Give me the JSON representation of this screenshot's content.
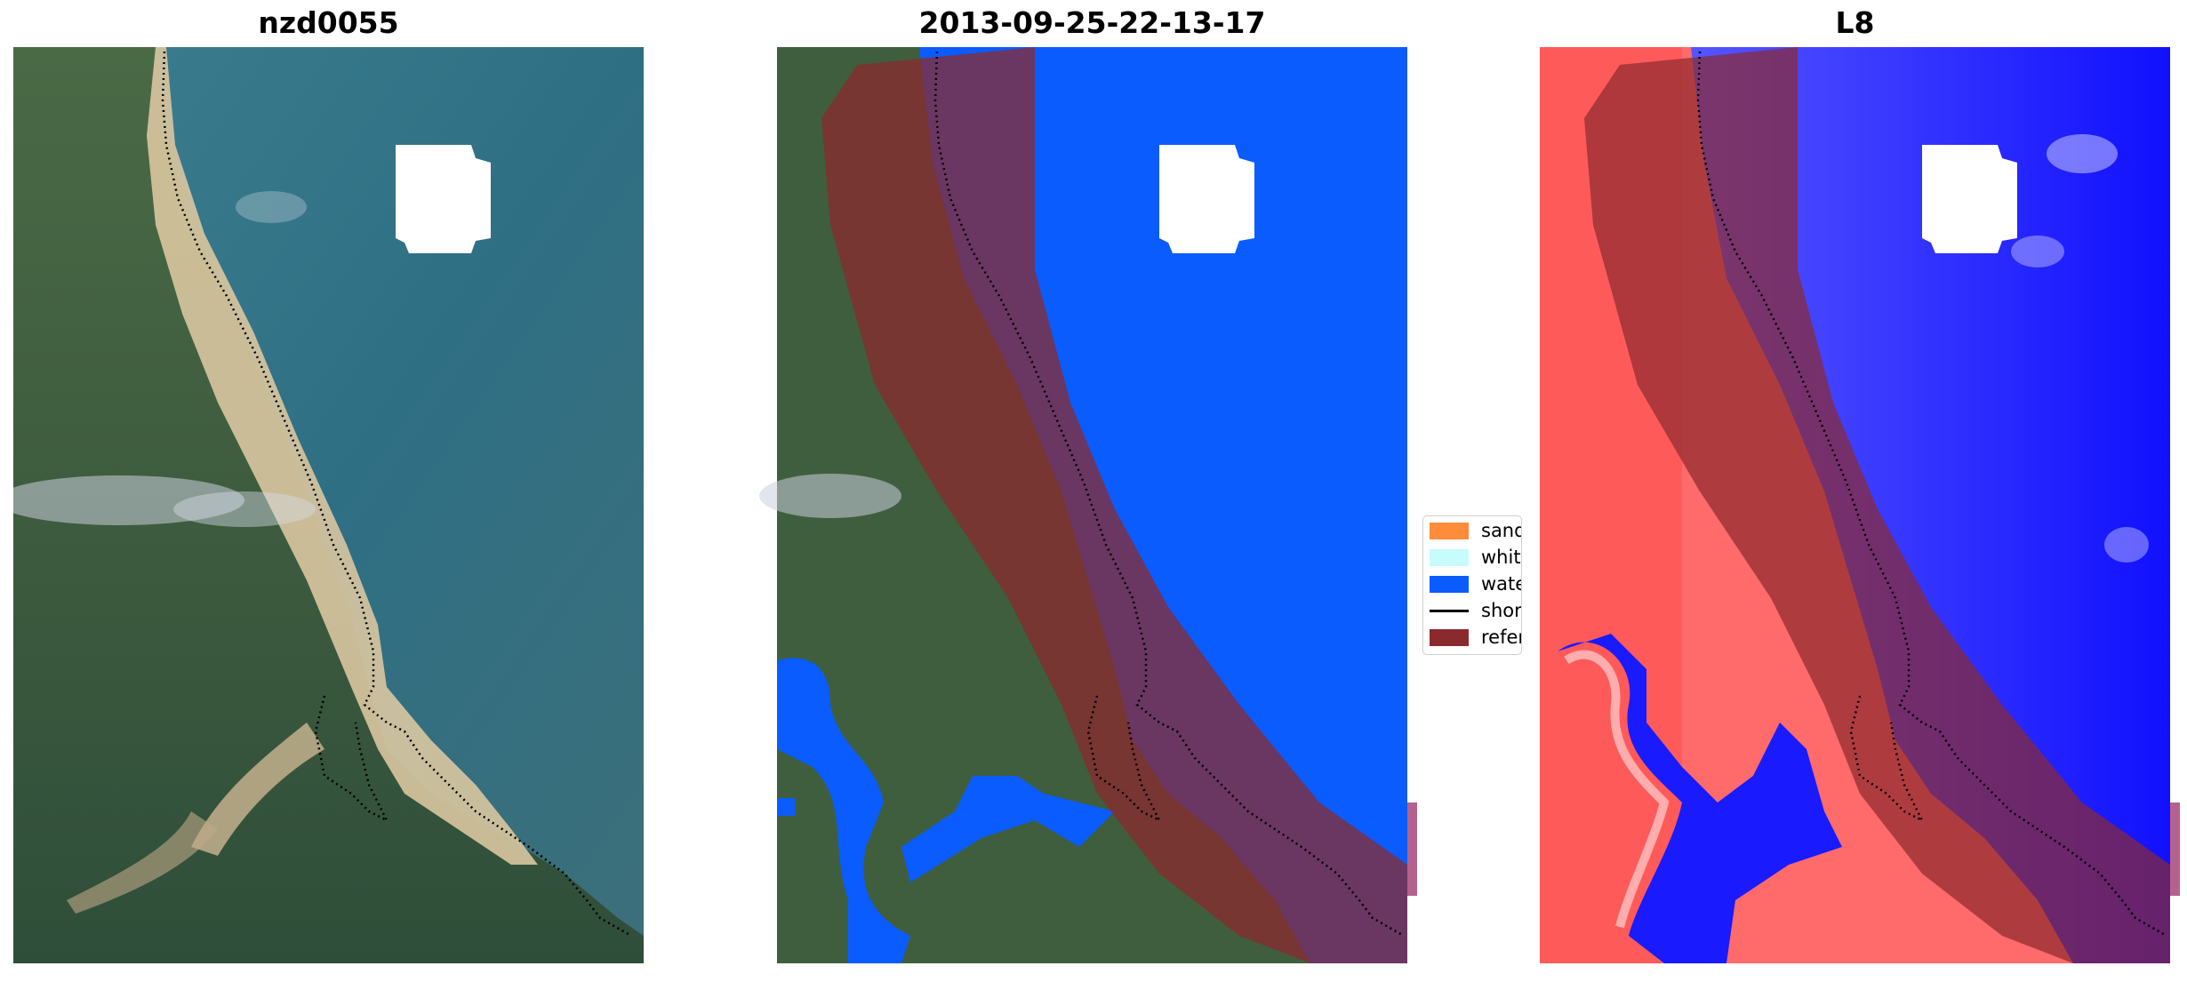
{
  "panels": [
    {
      "id": "rgb",
      "title": "nzd0055"
    },
    {
      "id": "classified",
      "title": "2013-09-25-22-13-17"
    },
    {
      "id": "index",
      "title": "L8"
    }
  ],
  "legend": {
    "items": [
      {
        "label": "sand",
        "color": "#ff8c3a",
        "kind": "patch"
      },
      {
        "label": "whitewater",
        "color": "#c8fcfc",
        "kind": "patch"
      },
      {
        "label": "water",
        "color": "#0a5cff",
        "kind": "patch"
      },
      {
        "label": "shoreline",
        "color": "#000000",
        "kind": "line"
      },
      {
        "label": "reference",
        "color": "#8b2a2e",
        "kind": "patch"
      }
    ]
  },
  "colors": {
    "ocean": "#3a7a8c",
    "land": "#3f5e3e",
    "sand": "#d8c8a2",
    "water_class": "#0a5cff",
    "reference_buffer": "#8b2a2e",
    "index_high": "#ff3b3b",
    "index_low": "#1010ff"
  }
}
